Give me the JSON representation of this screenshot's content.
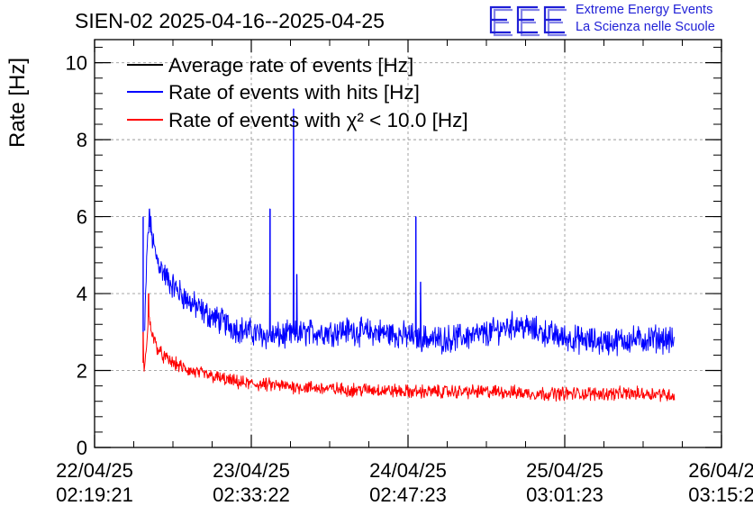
{
  "title": "SIEN-02 2025-04-16--2025-04-25",
  "logo": {
    "mark": "EEE",
    "line1": "Extreme Energy Events",
    "line2": "La Scienza nelle Scuole",
    "color": "#1f1fd6"
  },
  "chart_data": {
    "type": "line",
    "title": "SIEN-02 2025-04-16--2025-04-25",
    "xlabel": "",
    "ylabel": "Rate [Hz]",
    "ylim": [
      0,
      10.6
    ],
    "yticks": [
      0,
      2,
      4,
      6,
      8,
      10
    ],
    "xlim": [
      0,
      4
    ],
    "xticks": [
      {
        "value": 0,
        "date": "22/04/25",
        "time": "02:19:21"
      },
      {
        "value": 1,
        "date": "23/04/25",
        "time": "02:33:22"
      },
      {
        "value": 2,
        "date": "24/04/25",
        "time": "02:47:23"
      },
      {
        "value": 3,
        "date": "25/04/25",
        "time": "03:01:23"
      },
      {
        "value": 4,
        "date": "26/04/2",
        "time": "03:15:2"
      }
    ],
    "grid": true,
    "legend_position": "top-left",
    "x_unit": "days since 22/04/25 02:19:21",
    "series": [
      {
        "name": "Average rate of events [Hz]",
        "color": "#000000",
        "x": [],
        "values": []
      },
      {
        "name": "Rate of events with hits [Hz]",
        "color": "#0000ff",
        "noise": 0.28,
        "x": [
          0.32,
          0.33,
          0.34,
          0.355,
          0.37,
          0.39,
          0.42,
          0.46,
          0.5,
          0.55,
          0.6,
          0.7,
          0.8,
          0.9,
          1.0,
          1.1,
          1.2,
          1.3,
          1.4,
          1.5,
          1.6,
          1.7,
          1.8,
          1.9,
          2.0,
          2.1,
          2.2,
          2.3,
          2.4,
          2.5,
          2.6,
          2.7,
          2.8,
          2.9,
          3.0,
          3.1,
          3.2,
          3.3,
          3.4,
          3.5,
          3.6,
          3.7
        ],
        "values": [
          3.0,
          4.5,
          5.6,
          5.8,
          5.4,
          5.0,
          4.7,
          4.4,
          4.2,
          4.0,
          3.8,
          3.5,
          3.3,
          3.1,
          3.0,
          2.9,
          2.9,
          2.95,
          3.0,
          3.0,
          3.05,
          3.0,
          3.0,
          2.95,
          2.9,
          2.85,
          2.8,
          2.85,
          2.9,
          2.95,
          3.1,
          3.2,
          3.05,
          2.95,
          2.85,
          2.8,
          2.75,
          2.75,
          2.8,
          2.8,
          2.85,
          2.75
        ],
        "spikes": [
          {
            "x": 0.31,
            "value": 6.0
          },
          {
            "x": 0.35,
            "value": 6.2
          },
          {
            "x": 1.12,
            "value": 6.2
          },
          {
            "x": 1.27,
            "value": 8.8
          },
          {
            "x": 1.29,
            "value": 4.5
          },
          {
            "x": 2.05,
            "value": 6.0
          },
          {
            "x": 2.08,
            "value": 4.3
          }
        ]
      },
      {
        "name": "Rate of events with χ² < 10.0 [Hz]",
        "color": "#ff0000",
        "noise": 0.14,
        "x": [
          0.31,
          0.32,
          0.33,
          0.345,
          0.36,
          0.38,
          0.4,
          0.43,
          0.46,
          0.5,
          0.55,
          0.6,
          0.7,
          0.8,
          0.9,
          1.0,
          1.2,
          1.4,
          1.6,
          1.8,
          2.0,
          2.2,
          2.4,
          2.6,
          2.8,
          3.0,
          3.2,
          3.4,
          3.6,
          3.7
        ],
        "values": [
          2.2,
          2.0,
          2.6,
          3.4,
          3.1,
          2.8,
          2.6,
          2.4,
          2.3,
          2.2,
          2.1,
          2.0,
          1.9,
          1.8,
          1.7,
          1.65,
          1.6,
          1.55,
          1.5,
          1.5,
          1.45,
          1.45,
          1.45,
          1.45,
          1.4,
          1.4,
          1.4,
          1.4,
          1.4,
          1.35
        ],
        "spikes": [
          {
            "x": 0.31,
            "value": 3.0
          },
          {
            "x": 0.345,
            "value": 4.0
          }
        ]
      }
    ]
  }
}
